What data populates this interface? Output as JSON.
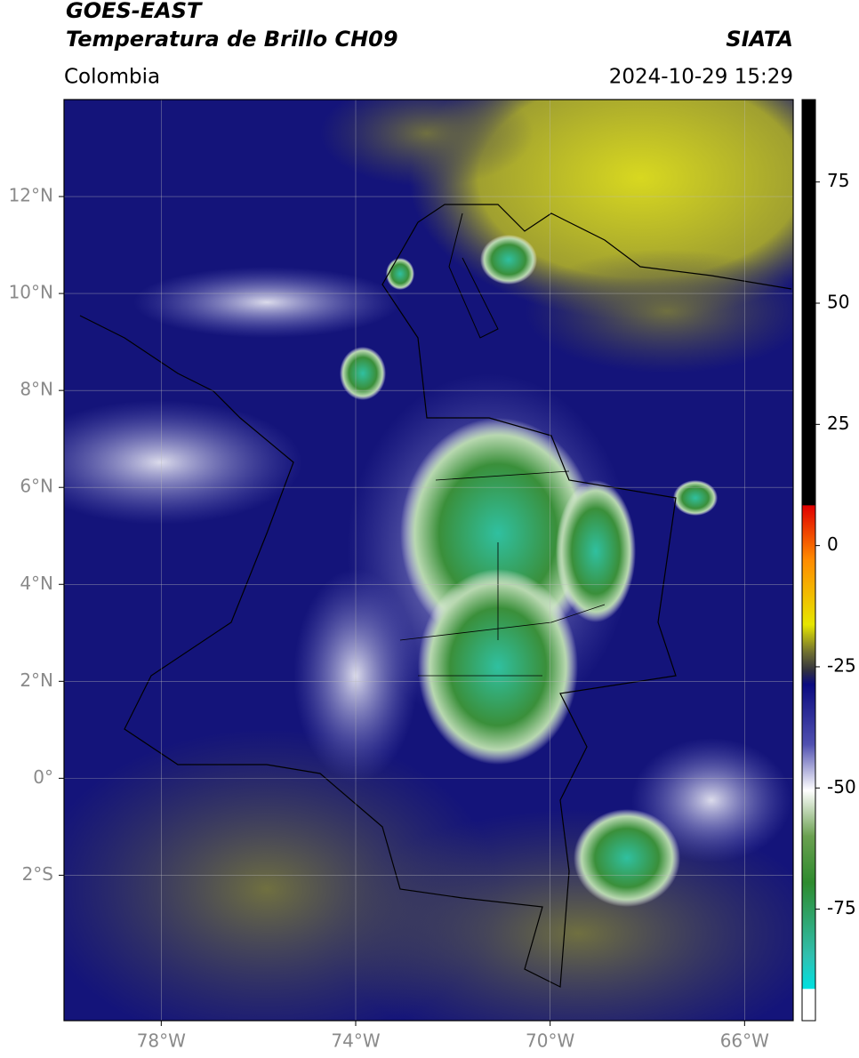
{
  "header": {
    "title": "GOES-EAST",
    "subtitle": "Temperatura de Brillo CH09",
    "source": "SIATA",
    "region": "Colombia",
    "datetime": "2024-10-29 15:29"
  },
  "map": {
    "xlim": [
      -80,
      -65
    ],
    "ylim": [
      -5,
      14
    ],
    "xticks": [
      {
        "value": -78,
        "label": "78°W"
      },
      {
        "value": -74,
        "label": "74°W"
      },
      {
        "value": -70,
        "label": "70°W"
      },
      {
        "value": -66,
        "label": "66°W"
      }
    ],
    "yticks": [
      {
        "value": 12,
        "label": "12°N"
      },
      {
        "value": 10,
        "label": "10°N"
      },
      {
        "value": 8,
        "label": "8°N"
      },
      {
        "value": 6,
        "label": "6°N"
      },
      {
        "value": 4,
        "label": "4°N"
      },
      {
        "value": 2,
        "label": "2°N"
      },
      {
        "value": 0,
        "label": "0°"
      },
      {
        "value": -2,
        "label": "2°S"
      }
    ]
  },
  "colorbar": {
    "lim": [
      -98,
      92
    ],
    "ticks": [
      75,
      50,
      25,
      0,
      -25,
      -50,
      -75
    ]
  }
}
